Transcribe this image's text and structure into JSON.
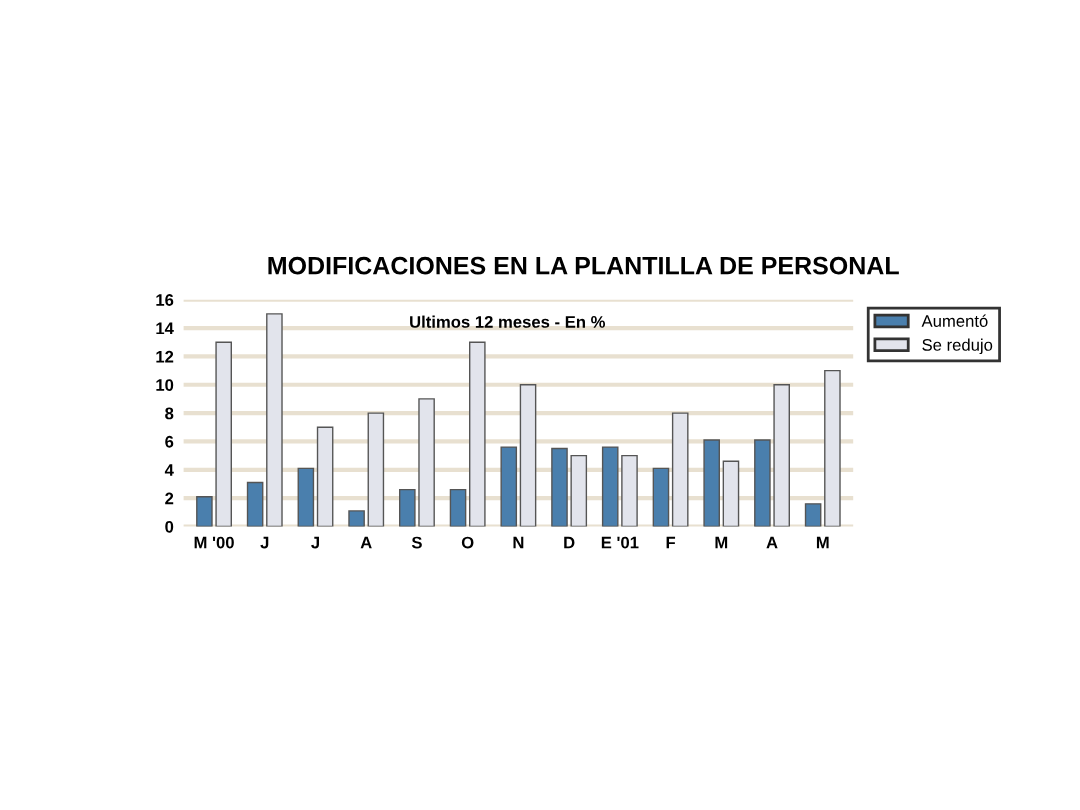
{
  "chart_data": {
    "type": "bar",
    "title": "MODIFICACIONES EN LA PLANTILLA DE PERSONAL",
    "subtitle": "Ultimos 12 meses - En %",
    "categories": [
      "M '00",
      "J",
      "J",
      "A",
      "S",
      "O",
      "N",
      "D",
      "E '01",
      "F",
      "M",
      "A",
      "M"
    ],
    "series": [
      {
        "name": "Aumentó",
        "color": "#4a7fad",
        "values": [
          2.1,
          3.1,
          4.1,
          1.1,
          2.6,
          2.6,
          5.6,
          5.5,
          5.6,
          4.1,
          6.1,
          6.1,
          1.6
        ]
      },
      {
        "name": "Se redujo",
        "color": "#e2e4ec",
        "values": [
          13,
          15,
          7,
          8,
          9,
          13,
          10,
          5,
          5,
          8,
          4.6,
          10,
          11
        ]
      }
    ],
    "ylim": [
      0,
      16
    ],
    "yticks": [
      0,
      2,
      4,
      6,
      8,
      10,
      12,
      14,
      16
    ],
    "grid": "y",
    "legend": "top right"
  }
}
